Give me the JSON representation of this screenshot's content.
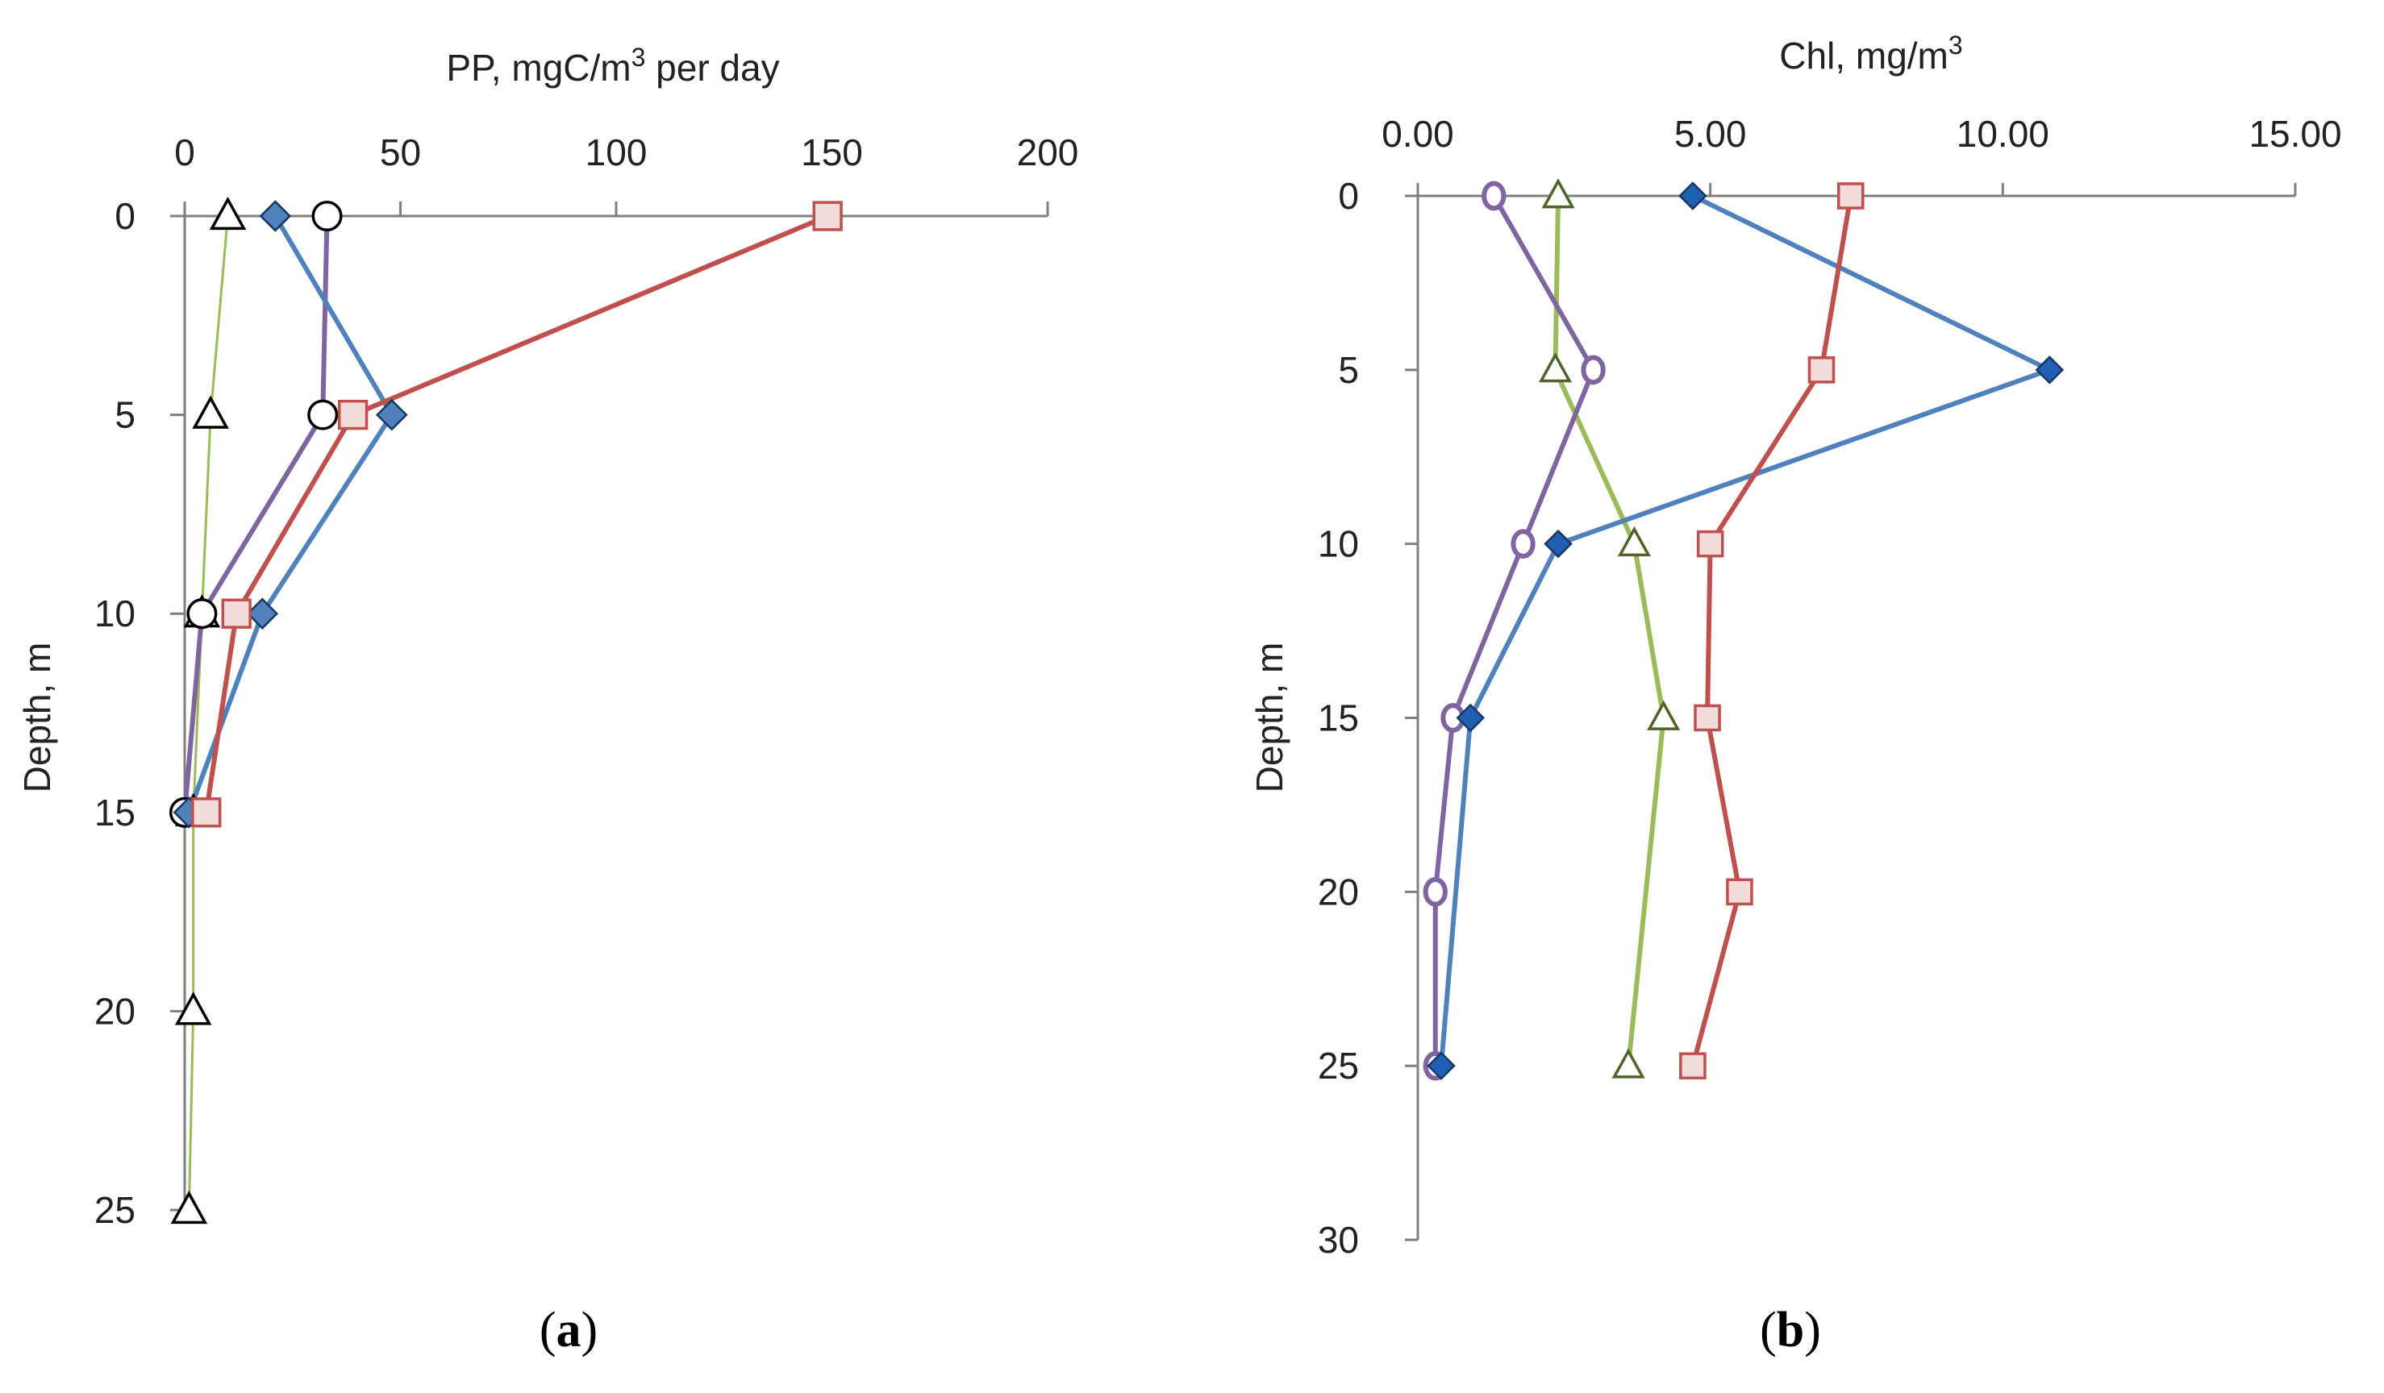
{
  "chart_data": [
    {
      "type": "line",
      "panel_label": "a",
      "xlabel": "PP, mgC/m",
      "xlabel_sup": "3",
      "xlabel_tail": " per day",
      "ylabel": "Depth, m",
      "xlim": [
        0,
        200
      ],
      "ylim": [
        0,
        25
      ],
      "x_ticks": [
        0,
        50,
        100,
        150,
        200
      ],
      "y_ticks": [
        0,
        5,
        10,
        15,
        20,
        25
      ],
      "x_tick_labels": [
        "0",
        "50",
        "100",
        "150",
        "200"
      ],
      "y_tick_labels": [
        "0",
        "5",
        "10",
        "15",
        "20",
        "25"
      ],
      "x_axis_position": "top",
      "y_inverted": true,
      "grid": false,
      "series": [
        {
          "color": "#9bbb59",
          "marker": "triangle-open",
          "line_width": 3,
          "points": [
            [
              10,
              0
            ],
            [
              6,
              5
            ],
            [
              4,
              10
            ],
            [
              2,
              15
            ],
            [
              2,
              20
            ],
            [
              1,
              25
            ]
          ]
        },
        {
          "color": "#8064a2",
          "marker": "circle-open",
          "line_width": 6,
          "points": [
            [
              33,
              0
            ],
            [
              32,
              5
            ],
            [
              4,
              10
            ],
            [
              0,
              15
            ]
          ]
        },
        {
          "color": "#4f81bd",
          "marker": "diamond",
          "line_width": 6,
          "points": [
            [
              21,
              0
            ],
            [
              48,
              5
            ],
            [
              18,
              10
            ],
            [
              1,
              15
            ]
          ]
        },
        {
          "color": "#c0504d",
          "marker": "square",
          "line_width": 6,
          "points": [
            [
              149,
              0
            ],
            [
              39,
              5
            ],
            [
              12,
              10
            ],
            [
              5,
              15
            ]
          ]
        }
      ]
    },
    {
      "type": "line",
      "panel_label": "b",
      "xlabel": "Chl, mg/m",
      "xlabel_sup": "3",
      "xlabel_tail": "",
      "ylabel": "Depth, m",
      "xlim": [
        0,
        15
      ],
      "ylim": [
        0,
        30
      ],
      "x_ticks": [
        0,
        5,
        10,
        15
      ],
      "y_ticks": [
        0,
        5,
        10,
        15,
        20,
        25,
        30
      ],
      "x_tick_labels": [
        "0.00",
        "5.00",
        "10.00",
        "15.00"
      ],
      "y_tick_labels": [
        "0",
        "5",
        "10",
        "15",
        "20",
        "25",
        "30"
      ],
      "x_axis_position": "top",
      "y_inverted": true,
      "grid": false,
      "series": [
        {
          "color": "#9bbb59",
          "marker": "triangle-open-green",
          "line_width": 6,
          "points": [
            [
              2.4,
              0
            ],
            [
              2.35,
              5
            ],
            [
              3.7,
              10
            ],
            [
              4.2,
              15
            ],
            [
              3.6,
              25
            ]
          ]
        },
        {
          "color": "#8064a2",
          "marker": "circle-open",
          "line_width": 6,
          "points": [
            [
              1.3,
              0
            ],
            [
              3.0,
              5
            ],
            [
              1.8,
              10
            ],
            [
              0.6,
              15
            ],
            [
              0.3,
              20
            ],
            [
              0.3,
              25
            ]
          ]
        },
        {
          "color": "#4f81bd",
          "marker": "diamond",
          "line_width": 6,
          "points": [
            [
              4.7,
              0
            ],
            [
              10.8,
              5
            ],
            [
              2.4,
              10
            ],
            [
              0.9,
              15
            ],
            [
              0.4,
              25
            ]
          ]
        },
        {
          "color": "#c0504d",
          "marker": "square",
          "line_width": 6,
          "points": [
            [
              7.4,
              0
            ],
            [
              6.9,
              5
            ],
            [
              5.0,
              10
            ],
            [
              4.95,
              15
            ],
            [
              5.5,
              20
            ],
            [
              4.7,
              25
            ]
          ]
        }
      ]
    }
  ]
}
